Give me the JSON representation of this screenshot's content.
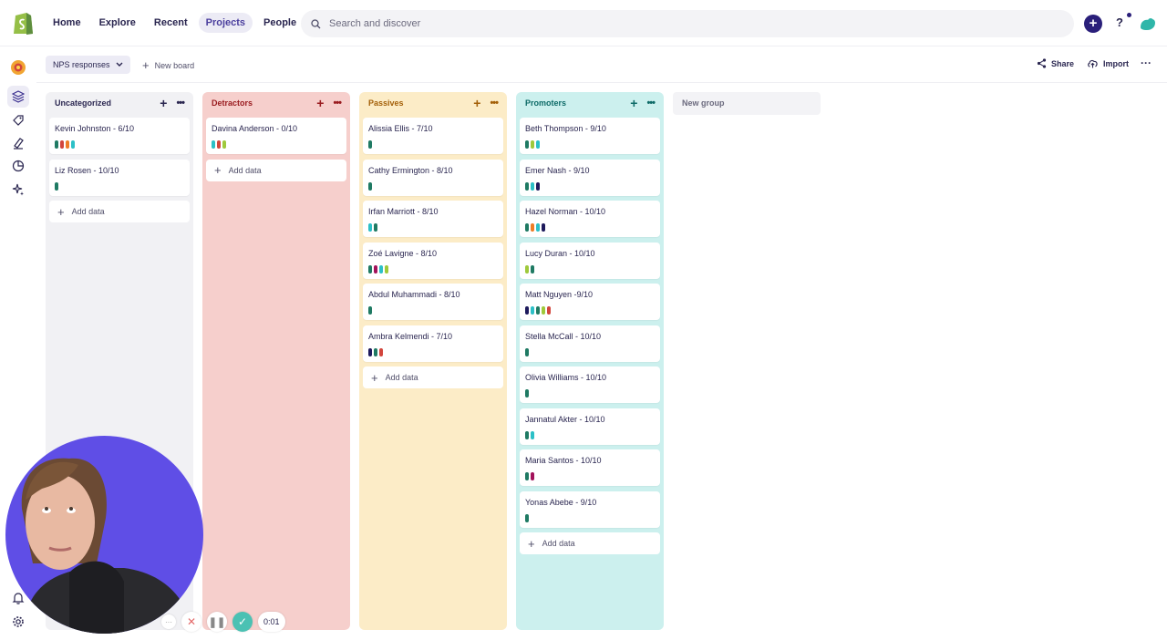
{
  "nav": {
    "items": [
      {
        "label": "Home",
        "active": false
      },
      {
        "label": "Explore",
        "active": false
      },
      {
        "label": "Recent",
        "active": false
      },
      {
        "label": "Projects",
        "active": true
      },
      {
        "label": "People",
        "active": false
      }
    ]
  },
  "search": {
    "placeholder": "Search and discover"
  },
  "header_right": {
    "help": "?"
  },
  "toolbar": {
    "board_name": "NPS responses",
    "new_board": "New board",
    "share": "Share",
    "import": "Import"
  },
  "columns": [
    {
      "title": "Uncategorized",
      "bg": "#f1f1f4",
      "head_color": "#2a2650",
      "cards": [
        {
          "name": "Kevin Johnston - 6/10",
          "tags": [
            "#1f7a63",
            "#d2453c",
            "#ee7d27",
            "#2cc0c7"
          ]
        },
        {
          "name": "Liz Rosen - 10/10",
          "tags": [
            "#1f7a63"
          ]
        }
      ],
      "add_label": "Add data"
    },
    {
      "title": "Detractors",
      "bg": "#f6cfcc",
      "head_color": "#9a1c20",
      "cards": [
        {
          "name": "Davina Anderson - 0/10",
          "tags": [
            "#2cc0c7",
            "#d2453c",
            "#9fc93b"
          ]
        }
      ],
      "add_label": "Add data"
    },
    {
      "title": "Passives",
      "bg": "#fcecc7",
      "head_color": "#a35f08",
      "cards": [
        {
          "name": "Alissia Ellis - 7/10",
          "tags": [
            "#1f7a63"
          ]
        },
        {
          "name": "Cathy Ermington - 8/10",
          "tags": [
            "#1f7a63"
          ]
        },
        {
          "name": "Irfan Marriott - 8/10",
          "tags": [
            "#2cc0c7",
            "#1f7a63"
          ]
        },
        {
          "name": "Zoé Lavigne - 8/10",
          "tags": [
            "#1f7a63",
            "#a3125b",
            "#2cc0c7",
            "#9fc93b"
          ]
        },
        {
          "name": "Abdul Muhammadi - 8/10",
          "tags": [
            "#1f7a63"
          ]
        },
        {
          "name": "Ambra Kelmendi - 7/10",
          "tags": [
            "#1e1a5c",
            "#1f7a63",
            "#d2453c"
          ]
        }
      ],
      "add_label": "Add data"
    },
    {
      "title": "Promoters",
      "bg": "#ccf0ee",
      "head_color": "#0e6b68",
      "cards": [
        {
          "name": "Beth Thompson - 9/10",
          "tags": [
            "#1f7a63",
            "#9fc93b",
            "#2cc0c7"
          ]
        },
        {
          "name": "Emer Nash - 9/10",
          "tags": [
            "#1f7a63",
            "#2cc0c7",
            "#1e1a5c"
          ]
        },
        {
          "name": "Hazel Norman - 10/10",
          "tags": [
            "#1f7a63",
            "#ee7d27",
            "#2cc0c7",
            "#1e1a5c"
          ]
        },
        {
          "name": "Lucy Duran - 10/10",
          "tags": [
            "#9fc93b",
            "#1f7a63"
          ]
        },
        {
          "name": "Matt Nguyen -9/10",
          "tags": [
            "#1e1a5c",
            "#2cc0c7",
            "#1f7a63",
            "#9fc93b",
            "#d2453c"
          ]
        },
        {
          "name": "Stella McCall - 10/10",
          "tags": [
            "#1f7a63"
          ]
        },
        {
          "name": "Olivia Williams - 10/10",
          "tags": [
            "#1f7a63"
          ]
        },
        {
          "name": "Jannatul Akter - 10/10",
          "tags": [
            "#1f7a63",
            "#2cc0c7"
          ]
        },
        {
          "name": "Maria Santos - 10/10",
          "tags": [
            "#1f7a63",
            "#a3125b"
          ]
        },
        {
          "name": "Yonas Abebe - 9/10",
          "tags": [
            "#1f7a63"
          ]
        }
      ],
      "add_label": "Add data"
    }
  ],
  "new_group": "New group",
  "recorder": {
    "time": "0:01",
    "more": "···"
  }
}
